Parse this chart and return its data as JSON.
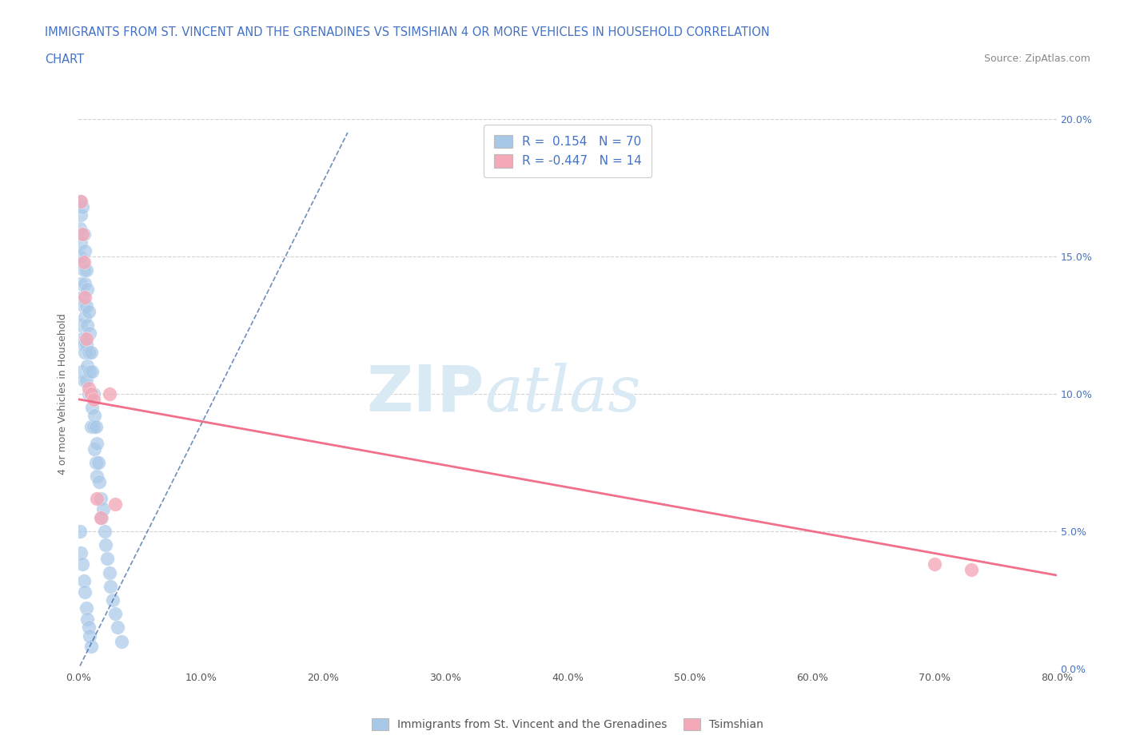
{
  "title_line1": "IMMIGRANTS FROM ST. VINCENT AND THE GRENADINES VS TSIMSHIAN 4 OR MORE VEHICLES IN HOUSEHOLD CORRELATION",
  "title_line2": "CHART",
  "source_text": "Source: ZipAtlas.com",
  "ylabel": "4 or more Vehicles in Household",
  "xmin": 0.0,
  "xmax": 0.8,
  "ymin": 0.0,
  "ymax": 0.2,
  "xticks": [
    0.0,
    0.1,
    0.2,
    0.3,
    0.4,
    0.5,
    0.6,
    0.7,
    0.8
  ],
  "xtick_labels": [
    "0.0%",
    "10.0%",
    "20.0%",
    "30.0%",
    "40.0%",
    "50.0%",
    "60.0%",
    "70.0%",
    "80.0%"
  ],
  "yticks": [
    0.0,
    0.05,
    0.1,
    0.15,
    0.2
  ],
  "ytick_labels": [
    "0.0%",
    "5.0%",
    "10.0%",
    "15.0%",
    "20.0%"
  ],
  "legend_label1": "Immigrants from St. Vincent and the Grenadines",
  "legend_label2": "Tsimshian",
  "blue_color": "#a8c8e8",
  "pink_color": "#f4a8b8",
  "blue_line_color": "#3060a0",
  "pink_line_color": "#f06080",
  "title_color": "#4472c4",
  "watermark_color": "#daeaf5",
  "background_color": "#ffffff",
  "blue_scatter_x": [
    0.001,
    0.001,
    0.001,
    0.002,
    0.002,
    0.002,
    0.002,
    0.003,
    0.003,
    0.003,
    0.003,
    0.003,
    0.004,
    0.004,
    0.004,
    0.004,
    0.004,
    0.005,
    0.005,
    0.005,
    0.005,
    0.006,
    0.006,
    0.006,
    0.006,
    0.007,
    0.007,
    0.007,
    0.008,
    0.008,
    0.008,
    0.009,
    0.009,
    0.01,
    0.01,
    0.01,
    0.011,
    0.011,
    0.012,
    0.012,
    0.013,
    0.013,
    0.014,
    0.014,
    0.015,
    0.015,
    0.016,
    0.017,
    0.018,
    0.019,
    0.02,
    0.021,
    0.022,
    0.023,
    0.025,
    0.026,
    0.028,
    0.03,
    0.032,
    0.035,
    0.001,
    0.002,
    0.003,
    0.004,
    0.005,
    0.006,
    0.007,
    0.008,
    0.009,
    0.01
  ],
  "blue_scatter_y": [
    0.17,
    0.16,
    0.15,
    0.165,
    0.155,
    0.14,
    0.125,
    0.168,
    0.148,
    0.135,
    0.12,
    0.108,
    0.158,
    0.145,
    0.132,
    0.118,
    0.105,
    0.152,
    0.14,
    0.128,
    0.115,
    0.145,
    0.132,
    0.118,
    0.105,
    0.138,
    0.125,
    0.11,
    0.13,
    0.115,
    0.1,
    0.122,
    0.108,
    0.115,
    0.1,
    0.088,
    0.108,
    0.095,
    0.1,
    0.088,
    0.092,
    0.08,
    0.088,
    0.075,
    0.082,
    0.07,
    0.075,
    0.068,
    0.062,
    0.055,
    0.058,
    0.05,
    0.045,
    0.04,
    0.035,
    0.03,
    0.025,
    0.02,
    0.015,
    0.01,
    0.05,
    0.042,
    0.038,
    0.032,
    0.028,
    0.022,
    0.018,
    0.015,
    0.012,
    0.008
  ],
  "pink_scatter_x": [
    0.002,
    0.003,
    0.004,
    0.005,
    0.006,
    0.008,
    0.01,
    0.012,
    0.015,
    0.018,
    0.025,
    0.03,
    0.7,
    0.73
  ],
  "pink_scatter_y": [
    0.17,
    0.158,
    0.148,
    0.135,
    0.12,
    0.102,
    0.1,
    0.098,
    0.062,
    0.055,
    0.1,
    0.06,
    0.038,
    0.036
  ],
  "blue_trend_x0": 0.001,
  "blue_trend_x1": 0.22,
  "blue_trend_y0": 0.001,
  "blue_trend_y1": 0.195,
  "pink_trend_x0": 0.0,
  "pink_trend_x1": 0.8,
  "pink_trend_y0": 0.098,
  "pink_trend_y1": 0.034
}
